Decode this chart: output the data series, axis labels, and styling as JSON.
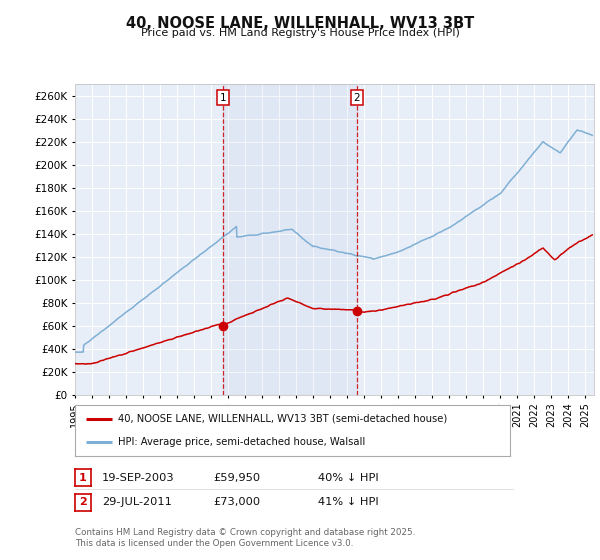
{
  "title": "40, NOOSE LANE, WILLENHALL, WV13 3BT",
  "subtitle": "Price paid vs. HM Land Registry's House Price Index (HPI)",
  "ylim": [
    0,
    270000
  ],
  "yticks": [
    0,
    20000,
    40000,
    60000,
    80000,
    100000,
    120000,
    140000,
    160000,
    180000,
    200000,
    220000,
    240000,
    260000
  ],
  "background_color": "#ffffff",
  "plot_bg_color": "#e8eef8",
  "grid_color": "#ffffff",
  "vline1_x": 2003.72,
  "vline2_x": 2011.57,
  "marker1_price": 59950,
  "marker2_price": 73000,
  "line1_color": "#cc0000",
  "line2_color": "#7fafd4",
  "legend_line1_label": "40, NOOSE LANE, WILLENHALL, WV13 3BT (semi-detached house)",
  "legend_line2_label": "HPI: Average price, semi-detached house, Walsall",
  "table_row1": [
    "1",
    "19-SEP-2003",
    "£59,950",
    "40% ↓ HPI"
  ],
  "table_row2": [
    "2",
    "29-JUL-2011",
    "£73,000",
    "41% ↓ HPI"
  ],
  "footnote": "Contains HM Land Registry data © Crown copyright and database right 2025.\nThis data is licensed under the Open Government Licence v3.0.",
  "xmin": 1995.0,
  "xmax": 2025.5
}
